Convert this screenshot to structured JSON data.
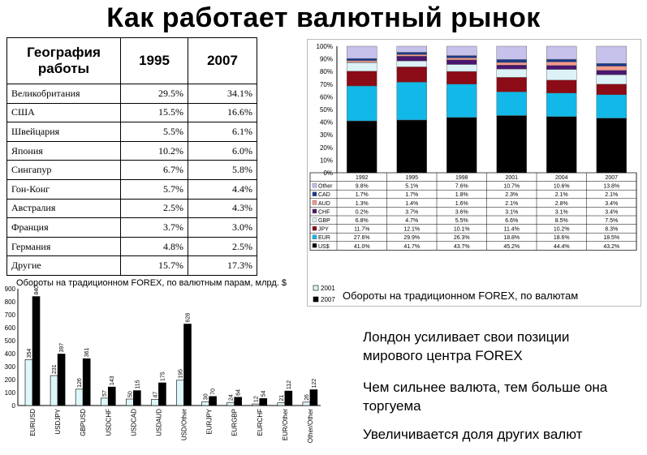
{
  "slide": {
    "title": "Как работает валютный рынок",
    "bullets": [
      "Лондон усиливает свои позиции мирового центра FOREX",
      "Чем сильнее валюта, тем больше она торгуема",
      "Увеличивается доля других валют"
    ]
  },
  "geo_table": {
    "headers": [
      "География работы",
      "1995",
      "2007"
    ],
    "rows": [
      [
        "Великобритания",
        "29.5%",
        "34.1%"
      ],
      [
        "США",
        "15.5%",
        "16.6%"
      ],
      [
        "Швейцария",
        "5.5%",
        "6.1%"
      ],
      [
        "Япония",
        "10.2%",
        "6.0%"
      ],
      [
        "Сингапур",
        "6.7%",
        "5.8%"
      ],
      [
        "Гон-Конг",
        "5.7%",
        "4.4%"
      ],
      [
        "Австралия",
        "2.5%",
        "4.3%"
      ],
      [
        "Франция",
        "3.7%",
        "3.0%"
      ],
      [
        "Германия",
        "4.8%",
        "2.5%"
      ],
      [
        "Другие",
        "15.7%",
        "17.3%"
      ]
    ]
  },
  "chart_data": [
    {
      "type": "bar",
      "stacked": true,
      "title": "",
      "caption": "Обороты на традиционном FOREX, по валютам",
      "categories": [
        "1992",
        "1995",
        "1998",
        "2001",
        "2004",
        "2007"
      ],
      "ylim": [
        0,
        100
      ],
      "yticks": [
        "0%",
        "10%",
        "20%",
        "30%",
        "40%",
        "50%",
        "60%",
        "70%",
        "80%",
        "90%",
        "100%"
      ],
      "series": [
        {
          "name": "US$",
          "color": "#000000",
          "values": [
            41.0,
            41.7,
            43.7,
            45.2,
            44.4,
            43.2
          ],
          "labels": [
            "41.0%",
            "41.7%",
            "43.7%",
            "45.2%",
            "44.4%",
            "43.2%"
          ]
        },
        {
          "name": "EUR",
          "color": "#12b8e8",
          "values": [
            27.6,
            29.9,
            26.3,
            18.8,
            18.6,
            18.5
          ],
          "labels": [
            "27.6%",
            "29.9%",
            "26.3%",
            "18.8%",
            "18.6%",
            "18.5%"
          ]
        },
        {
          "name": "JPY",
          "color": "#8b0b16",
          "values": [
            11.7,
            12.1,
            10.1,
            11.4,
            10.2,
            8.3
          ],
          "labels": [
            "11.7%",
            "12.1%",
            "10.1%",
            "11.4%",
            "10.2%",
            "8.3%"
          ]
        },
        {
          "name": "GBP",
          "color": "#dcf2f7",
          "values": [
            6.8,
            4.7,
            5.5,
            6.6,
            8.5,
            7.5
          ],
          "labels": [
            "6.8%",
            "4.7%",
            "5.5%",
            "6.6%",
            "8.5%",
            "7.5%"
          ]
        },
        {
          "name": "CHF",
          "color": "#4a1670",
          "values": [
            0.2,
            3.7,
            3.6,
            3.1,
            3.1,
            3.4
          ],
          "labels": [
            "0.2%",
            "3.7%",
            "3.6%",
            "3.1%",
            "3.1%",
            "3.4%"
          ]
        },
        {
          "name": "AUD",
          "color": "#f59a8c",
          "values": [
            1.3,
            1.4,
            1.6,
            2.1,
            2.8,
            3.4
          ],
          "labels": [
            "1.3%",
            "1.4%",
            "1.6%",
            "2.1%",
            "2.8%",
            "3.4%"
          ]
        },
        {
          "name": "CAD",
          "color": "#1a3a8a",
          "values": [
            1.7,
            1.7,
            1.8,
            2.3,
            2.1,
            2.1
          ],
          "labels": [
            "1.7%",
            "1.7%",
            "1.8%",
            "2.3%",
            "2.1%",
            "2.1%"
          ]
        },
        {
          "name": "Other",
          "color": "#c6c2ec",
          "values": [
            9.8,
            5.1,
            7.6,
            10.7,
            10.6,
            13.8
          ],
          "labels": [
            "9.8%",
            "5.1%",
            "7.6%",
            "10.7%",
            "10.6%",
            "13.8%"
          ]
        }
      ]
    },
    {
      "type": "bar",
      "title": "Обороты на традиционном FOREX, по валютным парам, млрд. $",
      "categories": [
        "EURUSD",
        "USDJPY",
        "GBPUSD",
        "USDCHF",
        "USDCAD",
        "USDAUD",
        "USD/Other",
        "EURJPY",
        "EURGBP",
        "EURCHF",
        "EUR/Other",
        "Other/Other"
      ],
      "ylim": [
        0,
        900
      ],
      "yticks": [
        "0",
        "100",
        "200",
        "300",
        "400",
        "500",
        "600",
        "700",
        "800",
        "900"
      ],
      "series": [
        {
          "name": "2001",
          "color": "#dff7fa",
          "values": [
            354,
            231,
            126,
            57,
            50,
            47,
            195,
            30,
            24,
            12,
            21,
            26
          ]
        },
        {
          "name": "2007",
          "color": "#000000",
          "values": [
            840,
            397,
            361,
            143,
            115,
            175,
            628,
            70,
            64,
            54,
            112,
            122
          ]
        }
      ]
    }
  ]
}
